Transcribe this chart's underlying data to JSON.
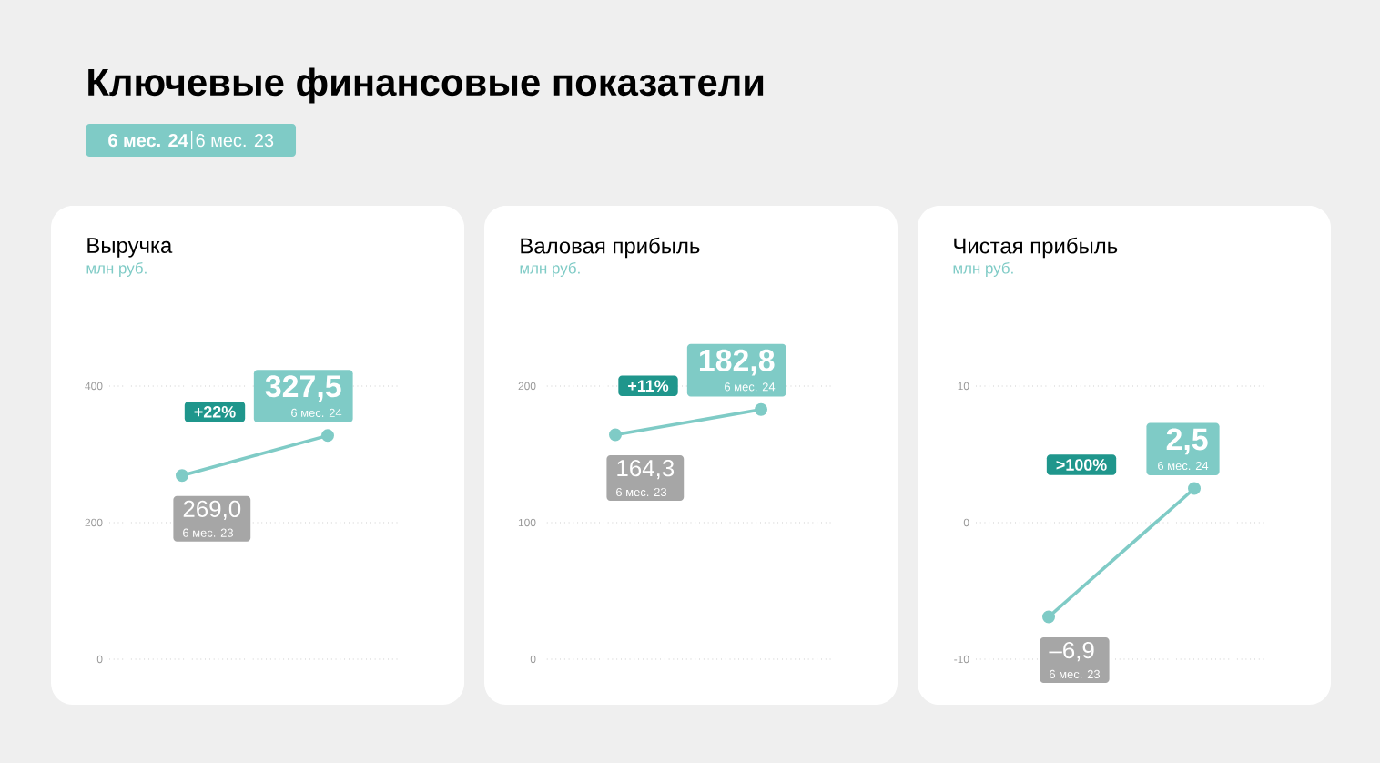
{
  "chart_data": [
    {
      "type": "other",
      "title": "Ключевые финансовые показатели",
      "annotations": [
        "6 мес. 24",
        "6 мес. 23"
      ]
    },
    {
      "type": "line",
      "title": "Выручка",
      "subtitle": "млн руб.",
      "categories": [
        null,
        null
      ],
      "series": [
        {
          "color": "#7fcbc6",
          "values": [
            269.0,
            327.5
          ],
          "value_labels": [
            "269,0",
            "327,5"
          ]
        }
      ],
      "ylim": [
        0,
        400
      ],
      "yticks": [
        0,
        200,
        400
      ],
      "grid": "y",
      "marker": "circle",
      "line_style": "solid",
      "annotations": [
        "+22%",
        "6 мес. 23",
        "6 мес. 24"
      ]
    },
    {
      "type": "line",
      "title": "Валовая прибыль",
      "subtitle": "млн руб.",
      "categories": [
        null,
        null
      ],
      "series": [
        {
          "color": "#7fcbc6",
          "values": [
            164.3,
            182.8
          ],
          "value_labels": [
            "164,3",
            "182,8"
          ]
        }
      ],
      "ylim": [
        0,
        200
      ],
      "yticks": [
        0,
        100,
        200
      ],
      "grid": "y",
      "marker": "circle",
      "line_style": "solid",
      "annotations": [
        "+11%",
        "6 мес. 23",
        "6 мес. 24"
      ]
    },
    {
      "type": "line",
      "title": "Чистая прибыль",
      "subtitle": "млн руб.",
      "categories": [
        null,
        null
      ],
      "series": [
        {
          "color": "#7fcbc6",
          "values": [
            -6.9,
            2.5
          ],
          "value_labels": [
            "–6,9",
            "2,5"
          ]
        }
      ],
      "ylim": [
        -10,
        10
      ],
      "yticks": [
        -10,
        0,
        10
      ],
      "grid": "y",
      "marker": "circle",
      "line_style": "solid",
      "annotations": [
        ">100%",
        "6 мес. 23",
        "6 мес. 24"
      ]
    }
  ]
}
